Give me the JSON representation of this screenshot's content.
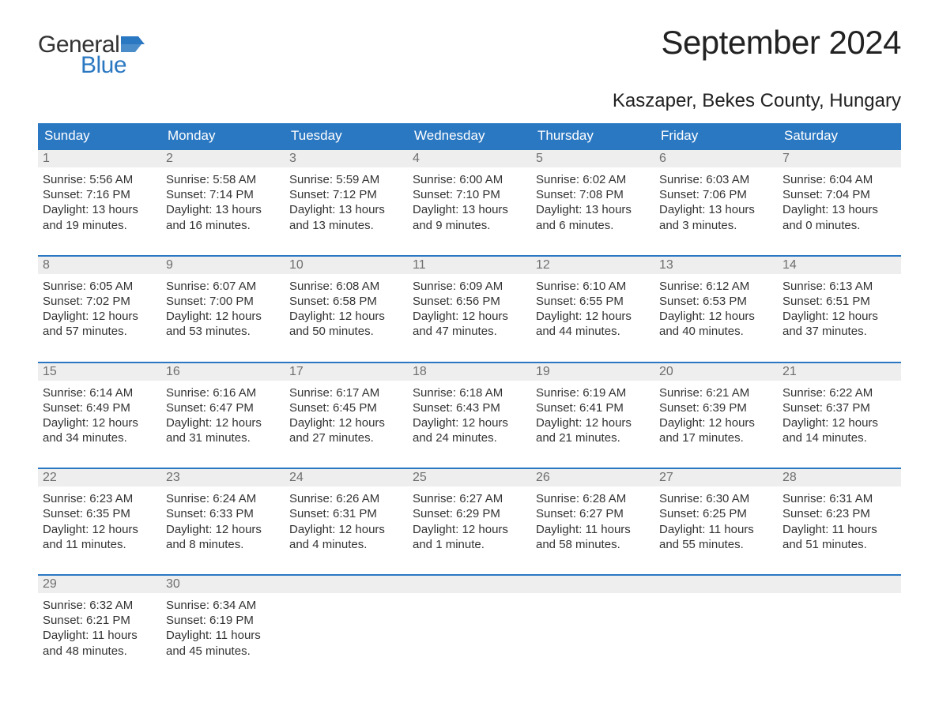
{
  "logo": {
    "text_general": "General",
    "text_blue": "Blue",
    "flag_color": "#2b78c2"
  },
  "title": "September 2024",
  "location": "Kaszaper, Bekes County, Hungary",
  "colors": {
    "header_bg": "#2b78c2",
    "header_text": "#ffffff",
    "daynum_bg": "#eeeeee",
    "daynum_text": "#6f6f6f",
    "body_text": "#333333",
    "week_border": "#2b78c2",
    "page_bg": "#ffffff"
  },
  "typography": {
    "month_title_fontsize": 42,
    "location_fontsize": 24,
    "dow_fontsize": 17,
    "daynum_fontsize": 16,
    "body_fontsize": 15
  },
  "days_of_week": [
    "Sunday",
    "Monday",
    "Tuesday",
    "Wednesday",
    "Thursday",
    "Friday",
    "Saturday"
  ],
  "weeks": [
    [
      {
        "num": "1",
        "sunrise": "Sunrise: 5:56 AM",
        "sunset": "Sunset: 7:16 PM",
        "daylight1": "Daylight: 13 hours",
        "daylight2": "and 19 minutes."
      },
      {
        "num": "2",
        "sunrise": "Sunrise: 5:58 AM",
        "sunset": "Sunset: 7:14 PM",
        "daylight1": "Daylight: 13 hours",
        "daylight2": "and 16 minutes."
      },
      {
        "num": "3",
        "sunrise": "Sunrise: 5:59 AM",
        "sunset": "Sunset: 7:12 PM",
        "daylight1": "Daylight: 13 hours",
        "daylight2": "and 13 minutes."
      },
      {
        "num": "4",
        "sunrise": "Sunrise: 6:00 AM",
        "sunset": "Sunset: 7:10 PM",
        "daylight1": "Daylight: 13 hours",
        "daylight2": "and 9 minutes."
      },
      {
        "num": "5",
        "sunrise": "Sunrise: 6:02 AM",
        "sunset": "Sunset: 7:08 PM",
        "daylight1": "Daylight: 13 hours",
        "daylight2": "and 6 minutes."
      },
      {
        "num": "6",
        "sunrise": "Sunrise: 6:03 AM",
        "sunset": "Sunset: 7:06 PM",
        "daylight1": "Daylight: 13 hours",
        "daylight2": "and 3 minutes."
      },
      {
        "num": "7",
        "sunrise": "Sunrise: 6:04 AM",
        "sunset": "Sunset: 7:04 PM",
        "daylight1": "Daylight: 13 hours",
        "daylight2": "and 0 minutes."
      }
    ],
    [
      {
        "num": "8",
        "sunrise": "Sunrise: 6:05 AM",
        "sunset": "Sunset: 7:02 PM",
        "daylight1": "Daylight: 12 hours",
        "daylight2": "and 57 minutes."
      },
      {
        "num": "9",
        "sunrise": "Sunrise: 6:07 AM",
        "sunset": "Sunset: 7:00 PM",
        "daylight1": "Daylight: 12 hours",
        "daylight2": "and 53 minutes."
      },
      {
        "num": "10",
        "sunrise": "Sunrise: 6:08 AM",
        "sunset": "Sunset: 6:58 PM",
        "daylight1": "Daylight: 12 hours",
        "daylight2": "and 50 minutes."
      },
      {
        "num": "11",
        "sunrise": "Sunrise: 6:09 AM",
        "sunset": "Sunset: 6:56 PM",
        "daylight1": "Daylight: 12 hours",
        "daylight2": "and 47 minutes."
      },
      {
        "num": "12",
        "sunrise": "Sunrise: 6:10 AM",
        "sunset": "Sunset: 6:55 PM",
        "daylight1": "Daylight: 12 hours",
        "daylight2": "and 44 minutes."
      },
      {
        "num": "13",
        "sunrise": "Sunrise: 6:12 AM",
        "sunset": "Sunset: 6:53 PM",
        "daylight1": "Daylight: 12 hours",
        "daylight2": "and 40 minutes."
      },
      {
        "num": "14",
        "sunrise": "Sunrise: 6:13 AM",
        "sunset": "Sunset: 6:51 PM",
        "daylight1": "Daylight: 12 hours",
        "daylight2": "and 37 minutes."
      }
    ],
    [
      {
        "num": "15",
        "sunrise": "Sunrise: 6:14 AM",
        "sunset": "Sunset: 6:49 PM",
        "daylight1": "Daylight: 12 hours",
        "daylight2": "and 34 minutes."
      },
      {
        "num": "16",
        "sunrise": "Sunrise: 6:16 AM",
        "sunset": "Sunset: 6:47 PM",
        "daylight1": "Daylight: 12 hours",
        "daylight2": "and 31 minutes."
      },
      {
        "num": "17",
        "sunrise": "Sunrise: 6:17 AM",
        "sunset": "Sunset: 6:45 PM",
        "daylight1": "Daylight: 12 hours",
        "daylight2": "and 27 minutes."
      },
      {
        "num": "18",
        "sunrise": "Sunrise: 6:18 AM",
        "sunset": "Sunset: 6:43 PM",
        "daylight1": "Daylight: 12 hours",
        "daylight2": "and 24 minutes."
      },
      {
        "num": "19",
        "sunrise": "Sunrise: 6:19 AM",
        "sunset": "Sunset: 6:41 PM",
        "daylight1": "Daylight: 12 hours",
        "daylight2": "and 21 minutes."
      },
      {
        "num": "20",
        "sunrise": "Sunrise: 6:21 AM",
        "sunset": "Sunset: 6:39 PM",
        "daylight1": "Daylight: 12 hours",
        "daylight2": "and 17 minutes."
      },
      {
        "num": "21",
        "sunrise": "Sunrise: 6:22 AM",
        "sunset": "Sunset: 6:37 PM",
        "daylight1": "Daylight: 12 hours",
        "daylight2": "and 14 minutes."
      }
    ],
    [
      {
        "num": "22",
        "sunrise": "Sunrise: 6:23 AM",
        "sunset": "Sunset: 6:35 PM",
        "daylight1": "Daylight: 12 hours",
        "daylight2": "and 11 minutes."
      },
      {
        "num": "23",
        "sunrise": "Sunrise: 6:24 AM",
        "sunset": "Sunset: 6:33 PM",
        "daylight1": "Daylight: 12 hours",
        "daylight2": "and 8 minutes."
      },
      {
        "num": "24",
        "sunrise": "Sunrise: 6:26 AM",
        "sunset": "Sunset: 6:31 PM",
        "daylight1": "Daylight: 12 hours",
        "daylight2": "and 4 minutes."
      },
      {
        "num": "25",
        "sunrise": "Sunrise: 6:27 AM",
        "sunset": "Sunset: 6:29 PM",
        "daylight1": "Daylight: 12 hours",
        "daylight2": "and 1 minute."
      },
      {
        "num": "26",
        "sunrise": "Sunrise: 6:28 AM",
        "sunset": "Sunset: 6:27 PM",
        "daylight1": "Daylight: 11 hours",
        "daylight2": "and 58 minutes."
      },
      {
        "num": "27",
        "sunrise": "Sunrise: 6:30 AM",
        "sunset": "Sunset: 6:25 PM",
        "daylight1": "Daylight: 11 hours",
        "daylight2": "and 55 minutes."
      },
      {
        "num": "28",
        "sunrise": "Sunrise: 6:31 AM",
        "sunset": "Sunset: 6:23 PM",
        "daylight1": "Daylight: 11 hours",
        "daylight2": "and 51 minutes."
      }
    ],
    [
      {
        "num": "29",
        "sunrise": "Sunrise: 6:32 AM",
        "sunset": "Sunset: 6:21 PM",
        "daylight1": "Daylight: 11 hours",
        "daylight2": "and 48 minutes."
      },
      {
        "num": "30",
        "sunrise": "Sunrise: 6:34 AM",
        "sunset": "Sunset: 6:19 PM",
        "daylight1": "Daylight: 11 hours",
        "daylight2": "and 45 minutes."
      },
      {
        "empty": true
      },
      {
        "empty": true
      },
      {
        "empty": true
      },
      {
        "empty": true
      },
      {
        "empty": true
      }
    ]
  ]
}
